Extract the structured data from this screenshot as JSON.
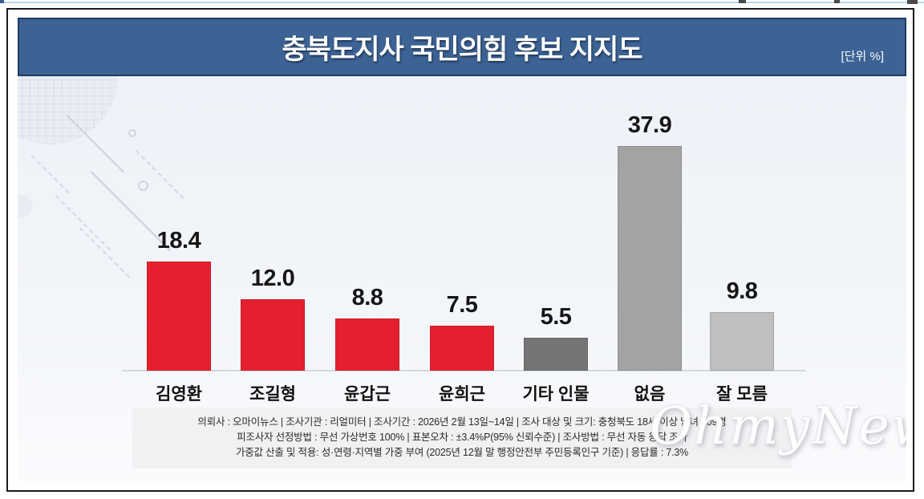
{
  "chart_data": {
    "type": "bar",
    "title": "충북도지사 국민의힘 후보 지지도",
    "unit_label": "[단위 %]",
    "categories": [
      "김영환",
      "조길형",
      "윤갑근",
      "윤희근",
      "기타 인물",
      "없음",
      "잘 모름"
    ],
    "values": [
      18.4,
      12.0,
      8.8,
      7.5,
      5.5,
      37.9,
      9.8
    ],
    "value_labels": [
      "18.4",
      "12.0",
      "8.8",
      "7.5",
      "5.5",
      "37.9",
      "9.8"
    ],
    "bar_colors": [
      "#e5202e",
      "#e5202e",
      "#e5202e",
      "#e5202e",
      "#757575",
      "#a3a3a3",
      "#bfbfbf"
    ],
    "xlabel": "",
    "ylabel": "",
    "ylim": [
      0,
      42
    ],
    "grid": false,
    "legend": "none"
  },
  "footer": {
    "lines": [
      "의뢰사 : 오마이뉴스 | 조사기관 : 리얼미터  |  조사기간 : 2026년 2월 13일~14일 | 조사 대상 및 크기: 충청북도 18세 이상 남녀 809명",
      "피조사자 선정방법 : 무선 가상번호 100% | 표본오차 : ±3.4%P(95% 신뢰수준) | 조사방법 : 무선 자동 응답 조사",
      "가중값 산출 및 적용: 성·연령·지역별 가중 부여 (2025년 12월 말 행정안전부 주민등록인구 기준) | 응답률 : 7.3%"
    ]
  },
  "watermark": {
    "text": "OhmyNews"
  },
  "colors": {
    "banner_bg": "#3c6394",
    "banner_border": "#1d3b63",
    "card_border": "#1a1a1a",
    "party_red": "#e5202e",
    "gray_dark": "#757575",
    "gray_mid": "#a3a3a3",
    "gray_light": "#bfbfbf",
    "footer_bg": "#f1f1f3",
    "chart_bg": "#f2f5f9"
  }
}
